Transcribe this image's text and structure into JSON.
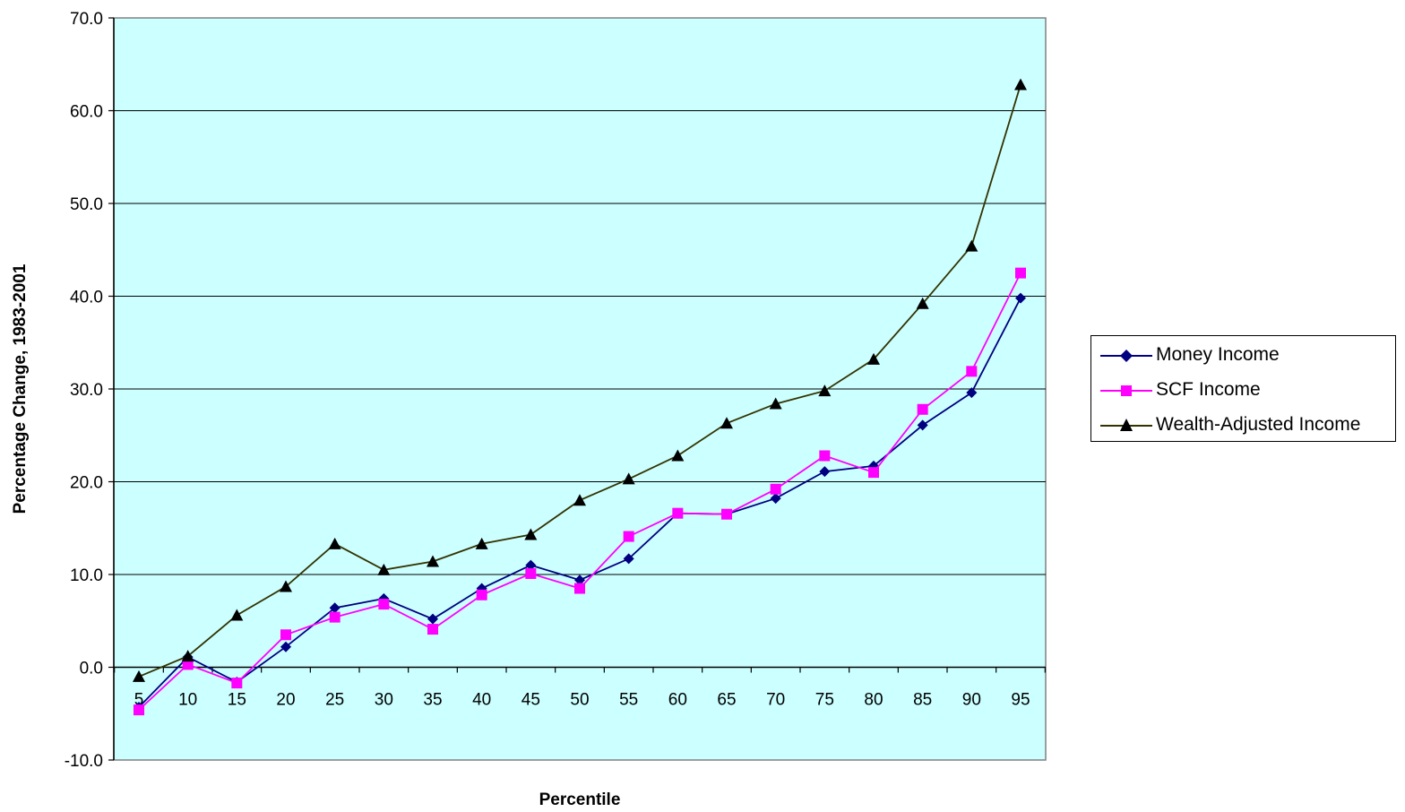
{
  "chart_data": {
    "type": "line",
    "xlabel": "Percentile",
    "ylabel": "Percentage Change, 1983-2001",
    "ylim": [
      -10,
      70
    ],
    "yticks": [
      "-10.0",
      "0.0",
      "10.0",
      "20.0",
      "30.0",
      "40.0",
      "50.0",
      "60.0",
      "70.0"
    ],
    "categories": [
      "5",
      "10",
      "15",
      "20",
      "25",
      "30",
      "35",
      "40",
      "45",
      "50",
      "55",
      "60",
      "65",
      "70",
      "75",
      "80",
      "85",
      "90",
      "95"
    ],
    "grid": true,
    "legend_position": "right",
    "plot_background": "#ccffff",
    "series": [
      {
        "name": "Money Income",
        "color": "#000080",
        "marker": "diamond",
        "values": [
          -4.3,
          1.1,
          -1.6,
          2.2,
          6.4,
          7.4,
          5.2,
          8.5,
          11.0,
          9.4,
          11.7,
          16.6,
          16.5,
          18.2,
          21.1,
          21.7,
          26.1,
          29.6,
          39.8
        ]
      },
      {
        "name": "SCF Income",
        "color": "#ff00ff",
        "marker": "square",
        "values": [
          -4.6,
          0.3,
          -1.7,
          3.5,
          5.4,
          6.8,
          4.1,
          7.8,
          10.1,
          8.5,
          14.1,
          16.6,
          16.5,
          19.2,
          22.8,
          21.0,
          27.8,
          31.9,
          42.5
        ]
      },
      {
        "name": "Wealth-Adjusted Income",
        "color": "#333300",
        "marker": "triangle",
        "values": [
          -1.0,
          1.2,
          5.6,
          8.7,
          13.3,
          10.5,
          11.4,
          13.3,
          14.3,
          18.0,
          20.3,
          22.8,
          26.3,
          28.4,
          29.8,
          33.2,
          39.2,
          45.4,
          62.8
        ]
      }
    ]
  }
}
